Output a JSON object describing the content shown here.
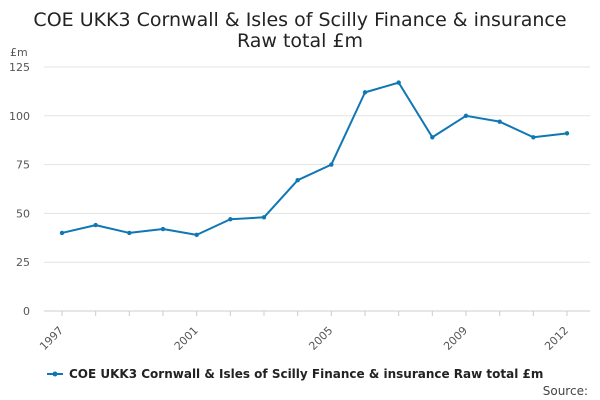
{
  "chart_data": {
    "type": "line",
    "title_line1": "COE UKK3 Cornwall & Isles of Scilly Finance & insurance",
    "title_line2": "Raw total £m",
    "y_unit": "£m",
    "xlabel": "",
    "ylabel": "",
    "x": [
      1997,
      1998,
      1999,
      2000,
      2001,
      2002,
      2003,
      2004,
      2005,
      2006,
      2007,
      2008,
      2009,
      2010,
      2011,
      2012
    ],
    "x_tick_labels": [
      "1997",
      "2001",
      "2005",
      "2009",
      "2012"
    ],
    "ylim": [
      0,
      125
    ],
    "y_ticks": [
      0,
      25,
      50,
      75,
      100,
      125
    ],
    "grid": true,
    "legend_position": "bottom",
    "series": [
      {
        "name": "COE UKK3 Cornwall & Isles of Scilly Finance & insurance Raw total £m",
        "color": "#0f77b3",
        "values": [
          40,
          44,
          40,
          42,
          39,
          47,
          48,
          67,
          75,
          112,
          117,
          89,
          100,
          97,
          89,
          91
        ]
      }
    ],
    "source_label": "Source:"
  }
}
